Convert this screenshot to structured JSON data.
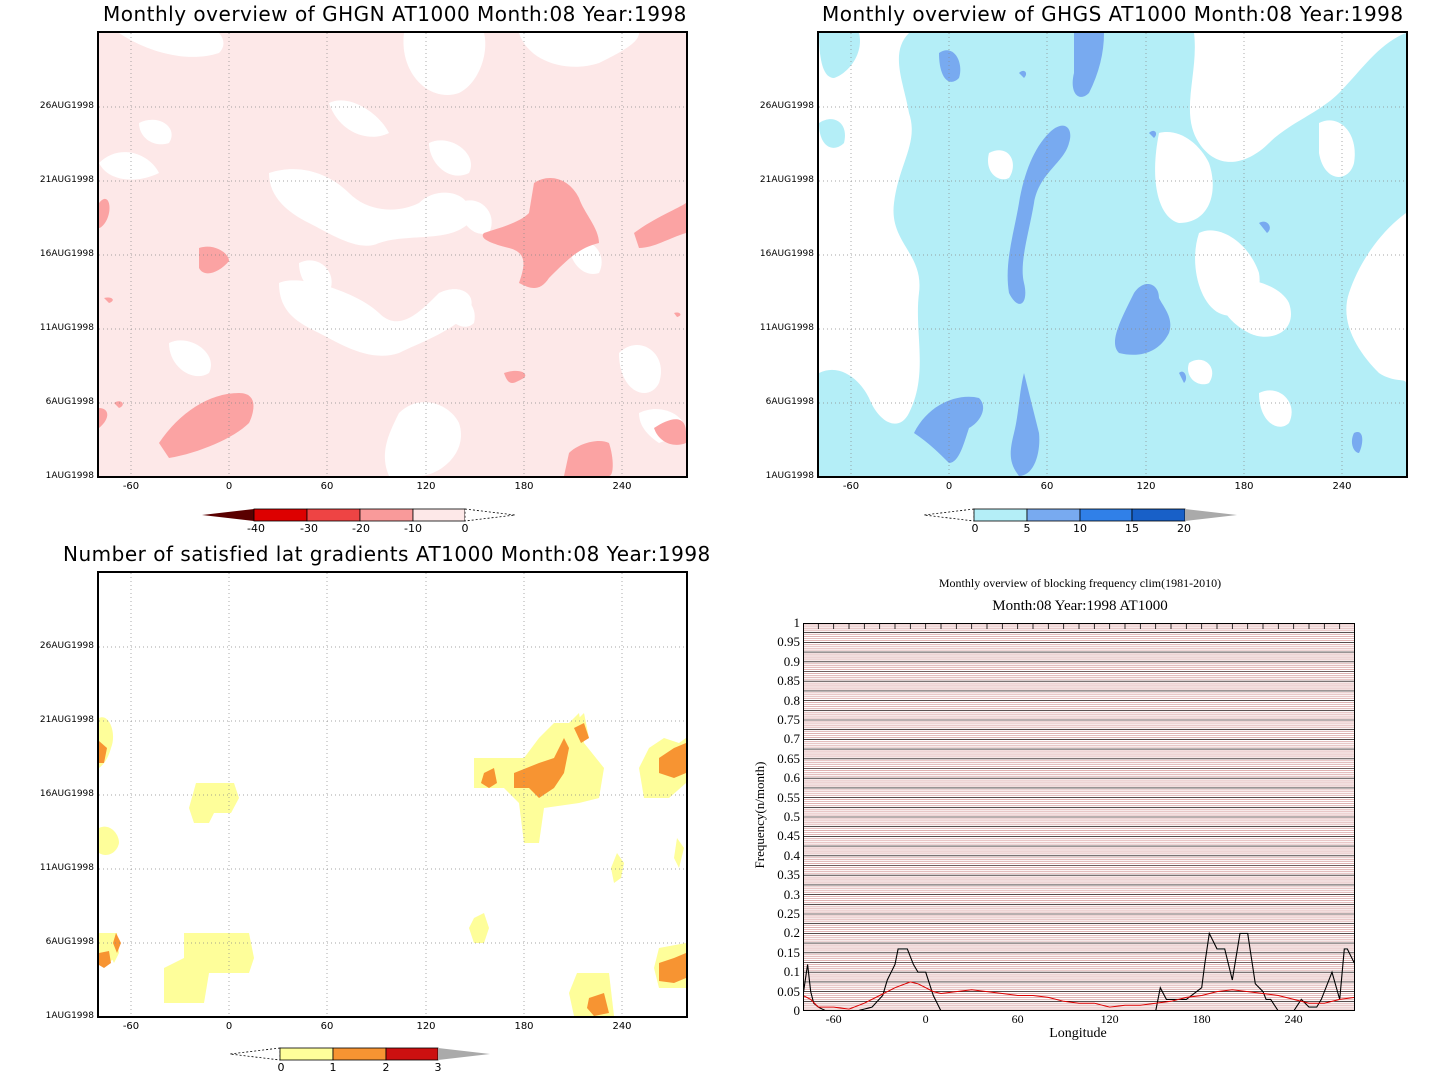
{
  "colors": {
    "ghgn": [
      "#fde8e8",
      "#fba3a3"
    ],
    "ghgs": [
      "#b4eef7",
      "#78aaf0"
    ],
    "nsat": [
      "#fefe9a",
      "#f79432",
      "#cc1010"
    ],
    "ghgn_bar": [
      "#5a0000",
      "#dd0000",
      "#ee4444",
      "#f99a9a",
      "#fde8e8"
    ],
    "ghgs_bar": [
      "#b4eef7",
      "#78aaf0",
      "#3080e8",
      "#1860c8",
      "#aaaaaa"
    ],
    "nsat_bar": [
      "#fefe9a",
      "#f79432",
      "#cc1010",
      "#aaaaaa"
    ],
    "freq_line": "#000000",
    "clim_line": "#dd0000",
    "stripe": "#dca8a8"
  },
  "yticks": [
    "26AUG1998",
    "21AUG1998",
    "16AUG1998",
    "11AUG1998",
    "6AUG1998",
    "1AUG1998"
  ],
  "xticks": [
    "-60",
    "0",
    "60",
    "120",
    "180",
    "240"
  ],
  "panels": {
    "ghgn": {
      "title": "Monthly overview of GHGN AT1000 Month:08 Year:1998",
      "cbar_labels": [
        "-40",
        "-30",
        "-20",
        "-10",
        "0"
      ]
    },
    "ghgs": {
      "title": "Monthly overview of GHGS AT1000 Month:08 Year:1998",
      "cbar_labels": [
        "0",
        "5",
        "10",
        "15",
        "20"
      ]
    },
    "nsat": {
      "title": "Number of satisfied lat gradients AT1000 Month:08 Year:1998",
      "cbar_labels": [
        "0",
        "1",
        "2",
        "3"
      ]
    },
    "freq": {
      "suptitle": "Monthly overview of blocking frequency clim(1981-2010)",
      "title": "Month:08 Year:1998  AT1000",
      "ylabel": "Frequency(n/month)",
      "xlabel": "Longitude",
      "yticks": [
        "1",
        "0.95",
        "0.9",
        "0.85",
        "0.8",
        "0.75",
        "0.7",
        "0.65",
        "0.6",
        "0.55",
        "0.5",
        "0.45",
        "0.4",
        "0.35",
        "0.3",
        "0.25",
        "0.2",
        "0.15",
        "0.1",
        "0.05",
        "0"
      ]
    }
  },
  "chart_data": [
    {
      "type": "heatmap",
      "title": "Monthly overview of GHGN AT1000 Month:08 Year:1998",
      "x_range": [
        -80,
        280
      ],
      "y_range": [
        "1AUG1998",
        "31AUG1998"
      ],
      "levels": [
        -40,
        -30,
        -20,
        -10,
        0
      ]
    },
    {
      "type": "heatmap",
      "title": "Monthly overview of GHGS AT1000 Month:08 Year:1998",
      "x_range": [
        -80,
        280
      ],
      "y_range": [
        "1AUG1998",
        "31AUG1998"
      ],
      "levels": [
        0,
        5,
        10,
        15,
        20
      ]
    },
    {
      "type": "heatmap",
      "title": "Number of satisfied lat gradients AT1000 Month:08 Year:1998",
      "x_range": [
        -80,
        280
      ],
      "y_range": [
        "1AUG1998",
        "31AUG1998"
      ],
      "levels": [
        0,
        1,
        2,
        3
      ]
    },
    {
      "type": "line",
      "title": "Month:08 Year:1998  AT1000",
      "xlabel": "Longitude",
      "ylabel": "Frequency(n/month)",
      "xlim": [
        -80,
        280
      ],
      "ylim": [
        0,
        1
      ],
      "series": [
        {
          "color": "#000000",
          "x": [
            -80,
            -77,
            -75,
            -73,
            -70,
            -65,
            -55,
            -45,
            -35,
            -28,
            -25,
            -20,
            -18,
            -12,
            -8,
            -5,
            0,
            5,
            10,
            15,
            20,
            60,
            100,
            140,
            150,
            153,
            157,
            160,
            170,
            180,
            182,
            185,
            190,
            193,
            195,
            200,
            205,
            210,
            215,
            220,
            222,
            225,
            230,
            240,
            245,
            250,
            255,
            258,
            265,
            270,
            273,
            275,
            280
          ],
          "y": [
            0.04,
            0.12,
            0.05,
            0.02,
            0.01,
            0.0,
            0.0,
            0.0,
            0.01,
            0.04,
            0.08,
            0.12,
            0.16,
            0.16,
            0.12,
            0.1,
            0.1,
            0.04,
            0.0,
            0.0,
            0.0,
            0.0,
            0.0,
            0.0,
            0.0,
            0.06,
            0.03,
            0.03,
            0.03,
            0.06,
            0.12,
            0.2,
            0.16,
            0.16,
            0.16,
            0.08,
            0.2,
            0.2,
            0.07,
            0.05,
            0.03,
            0.03,
            0.0,
            0.0,
            0.03,
            0.01,
            0.01,
            0.03,
            0.1,
            0.03,
            0.16,
            0.16,
            0.12
          ]
        },
        {
          "color": "#dd0000",
          "x": [
            -80,
            -75,
            -70,
            -60,
            -50,
            -40,
            -30,
            -20,
            -10,
            -5,
            0,
            5,
            10,
            20,
            30,
            40,
            50,
            60,
            70,
            80,
            90,
            100,
            110,
            120,
            130,
            140,
            150,
            160,
            170,
            180,
            190,
            200,
            210,
            220,
            230,
            240,
            250,
            260,
            270,
            280
          ],
          "y": [
            0.04,
            0.03,
            0.01,
            0.01,
            0.005,
            0.02,
            0.04,
            0.06,
            0.075,
            0.07,
            0.06,
            0.05,
            0.045,
            0.05,
            0.055,
            0.05,
            0.045,
            0.04,
            0.04,
            0.035,
            0.025,
            0.02,
            0.02,
            0.01,
            0.015,
            0.015,
            0.02,
            0.025,
            0.035,
            0.04,
            0.05,
            0.055,
            0.05,
            0.045,
            0.04,
            0.03,
            0.02,
            0.02,
            0.03,
            0.035
          ]
        }
      ]
    }
  ]
}
